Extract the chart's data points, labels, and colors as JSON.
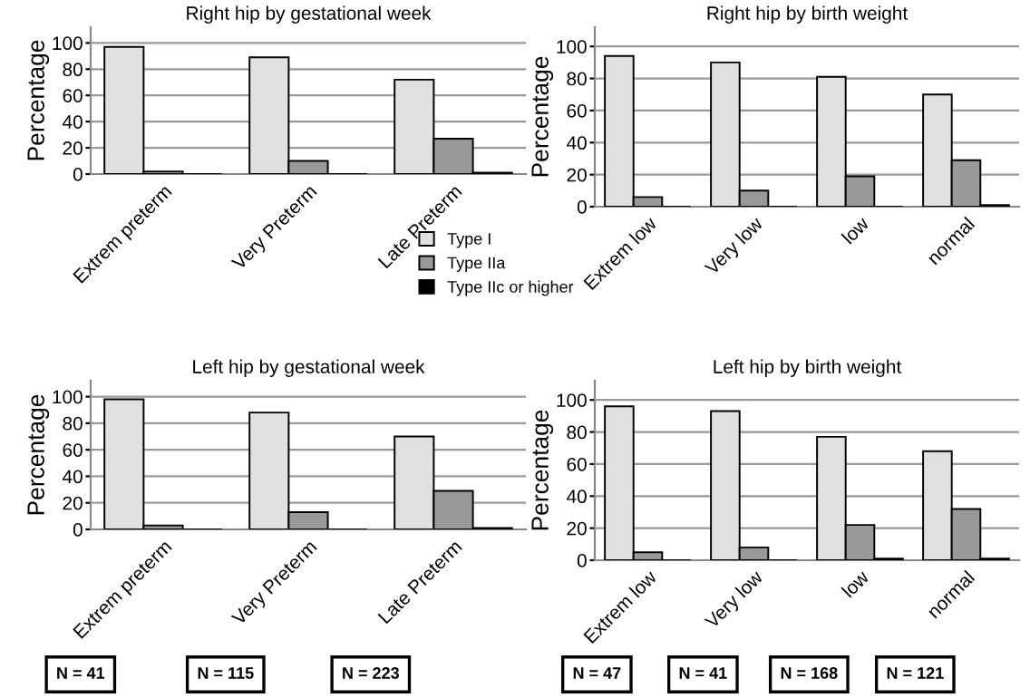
{
  "chart_data": [
    {
      "type": "bar",
      "title": "Right hip by gestational week",
      "ylabel": "Percentage",
      "categories": [
        "Extrem preterm",
        "Very Preterm",
        "Late Preterm"
      ],
      "series": [
        {
          "name": "Type I",
          "color": "#e0e0e0",
          "values": [
            97,
            89,
            72
          ]
        },
        {
          "name": "Type IIa",
          "color": "#999999",
          "values": [
            2,
            10,
            27
          ]
        },
        {
          "name": "Type IIc or higher",
          "color": "#000000",
          "values": [
            0,
            0,
            1
          ]
        }
      ],
      "ylim": [
        0,
        112
      ],
      "yticks": [
        0,
        20,
        40,
        60,
        80,
        100
      ],
      "grid": "y",
      "legend": "bottom right"
    },
    {
      "type": "bar",
      "title": "Right hip by birth weight",
      "ylabel": "Percentage",
      "categories": [
        "Extrem low",
        "Very low",
        "low",
        "normal"
      ],
      "series": [
        {
          "color": "#e0e0e0",
          "values": [
            94,
            90,
            81,
            70
          ]
        },
        {
          "color": "#999999",
          "values": [
            6,
            10,
            19,
            29
          ]
        },
        {
          "color": "#000000",
          "values": [
            0,
            0,
            0,
            1
          ]
        }
      ],
      "ylim": [
        0,
        112
      ],
      "yticks": [
        0,
        20,
        40,
        60,
        80,
        100
      ],
      "grid": "y"
    },
    {
      "type": "bar",
      "title": "Left hip by gestational week",
      "ylabel": "Percentage",
      "categories": [
        "Extrem preterm",
        "Very Preterm",
        "Late Preterm"
      ],
      "series": [
        {
          "color": "#e0e0e0",
          "values": [
            98,
            88,
            70
          ]
        },
        {
          "color": "#999999",
          "values": [
            3,
            13,
            29
          ]
        },
        {
          "color": "#000000",
          "values": [
            0,
            0,
            1
          ]
        }
      ],
      "ylim": [
        0,
        112
      ],
      "yticks": [
        0,
        20,
        40,
        60,
        80,
        100
      ],
      "grid": "y",
      "annotations": [
        "N = 41",
        "N = 115",
        "N = 223"
      ]
    },
    {
      "type": "bar",
      "title": "Left hip by birth weight",
      "ylabel": "Percentage",
      "categories": [
        "Extrem low",
        "Very low",
        "low",
        "normal"
      ],
      "series": [
        {
          "color": "#e0e0e0",
          "values": [
            96,
            93,
            77,
            68
          ]
        },
        {
          "color": "#999999",
          "values": [
            5,
            8,
            22,
            32
          ]
        },
        {
          "color": "#000000",
          "values": [
            0,
            0,
            1,
            1
          ]
        }
      ],
      "ylim": [
        0,
        112
      ],
      "yticks": [
        0,
        20,
        40,
        60,
        80,
        100
      ],
      "grid": "y",
      "annotations": [
        "N = 47",
        "N = 41",
        "N = 168",
        "N = 121"
      ]
    }
  ]
}
